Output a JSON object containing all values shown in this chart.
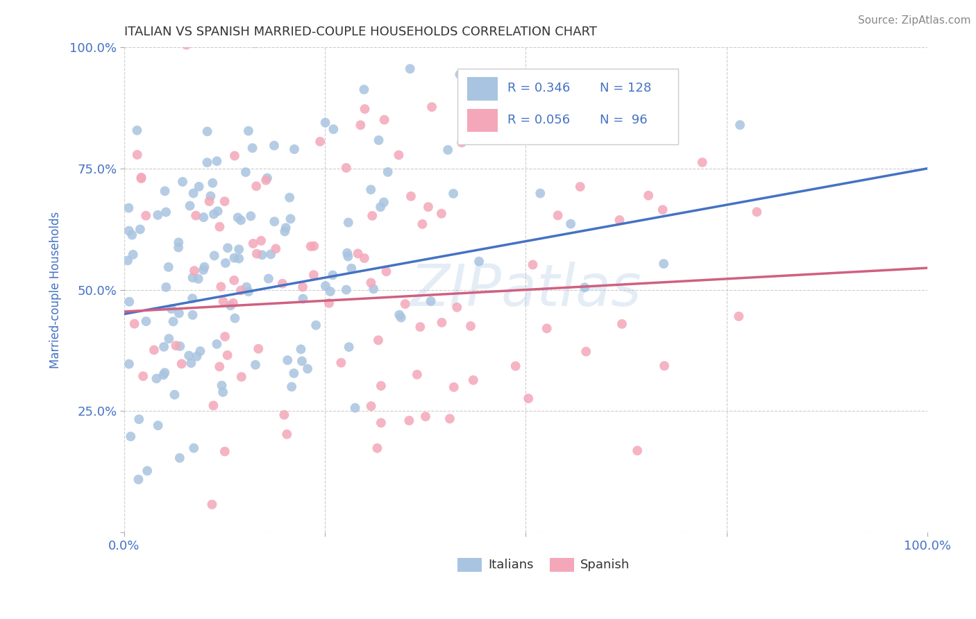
{
  "title": "ITALIAN VS SPANISH MARRIED-COUPLE HOUSEHOLDS CORRELATION CHART",
  "source_text": "Source: ZipAtlas.com",
  "ylabel": "Married-couple Households",
  "xlim": [
    0.0,
    1.0
  ],
  "ylim": [
    0.0,
    1.0
  ],
  "italians_color": "#a8c4e0",
  "spanish_color": "#f4a7b9",
  "line_italian_color": "#4472c4",
  "line_spanish_color": "#d06080",
  "grid_color": "#cccccc",
  "background_color": "#ffffff",
  "axis_label_color": "#4472c4",
  "watermark_text": "ZIPatlas",
  "legend_R_italian": "0.346",
  "legend_N_italian": "128",
  "legend_R_spanish": "0.056",
  "legend_N_spanish": "96",
  "it_line_x0": 0.0,
  "it_line_y0": 0.45,
  "it_line_x1": 1.0,
  "it_line_y1": 0.75,
  "sp_line_x0": 0.0,
  "sp_line_y0": 0.455,
  "sp_line_x1": 1.0,
  "sp_line_y1": 0.545
}
